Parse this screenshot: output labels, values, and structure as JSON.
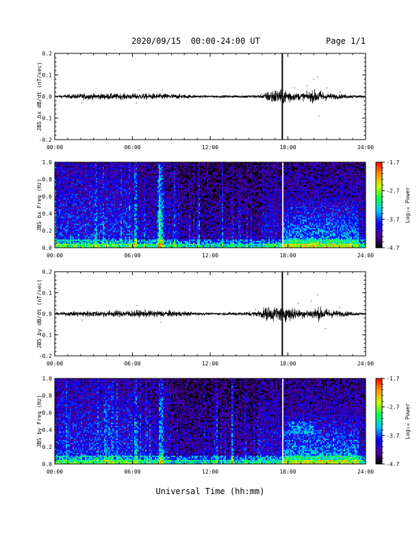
{
  "header": {
    "title": "2020/09/15  00:00-24:00 UT",
    "page": "Page 1/1"
  },
  "xaxis_caption": "Universal Time (hh:mm)",
  "chart_data": [
    {
      "type": "line",
      "ylabel": "JBS bx dB/dt (nT/sec)",
      "xlim": [
        "00:00",
        "24:00"
      ],
      "ylim": [
        -0.2,
        0.2
      ],
      "x_ticks": [
        "00:00",
        "06:00",
        "12:00",
        "18:00",
        "24:00"
      ],
      "y_ticks": [
        "-0.2",
        "-0.1",
        "0.0",
        "0.1",
        "0.2"
      ],
      "series": [
        {
          "x_hours": [
            0,
            2.1,
            6.3,
            6.5,
            8.3,
            12,
            16,
            17.55,
            17.6,
            18.5,
            19.5,
            20,
            20.3,
            20.4,
            21,
            22,
            24
          ],
          "values": [
            0.0,
            -0.03,
            -0.03,
            0.03,
            0.03,
            0.0,
            0.01,
            0.2,
            -0.2,
            0.04,
            0.05,
            0.08,
            0.09,
            -0.09,
            0.04,
            0.02,
            0.0
          ]
        }
      ]
    },
    {
      "type": "heatmap",
      "ylabel": "JBS bx Freq (Hz)",
      "xlim": [
        "00:00",
        "24:00"
      ],
      "ylim": [
        0.0,
        1.0
      ],
      "x_ticks": [
        "00:00",
        "06:00",
        "12:00",
        "18:00",
        "24:00"
      ],
      "y_ticks": [
        "0.0",
        "0.2",
        "0.4",
        "0.6",
        "0.8",
        "1.0"
      ],
      "colorbar": {
        "label": "Log₁₀ Power",
        "range": [
          -4.7,
          -1.7
        ],
        "ticks": [
          "-1.7",
          "-2.7",
          "-3.7",
          "-4.7"
        ]
      },
      "colormap": [
        "#000000",
        "#5000a0",
        "#0000ff",
        "#00c8ff",
        "#00ff50",
        "#c8ff00",
        "#ff9600",
        "#ff0000"
      ],
      "features": {
        "bright_bands_hours": [
          6.2,
          8.2
        ],
        "data_gap_hours": 17.6,
        "enhanced_region_hours": [
          17.6,
          23.5
        ],
        "enhanced_region_freq_hz": [
          0.0,
          0.6
        ]
      }
    },
    {
      "type": "line",
      "ylabel": "JBS by dB/dt (nT/sec)",
      "xlim": [
        "00:00",
        "24:00"
      ],
      "ylim": [
        -0.2,
        0.2
      ],
      "x_ticks": [
        "00:00",
        "06:00",
        "12:00",
        "18:00",
        "24:00"
      ],
      "y_ticks": [
        "-0.2",
        "-0.1",
        "0.0",
        "0.1",
        "0.2"
      ],
      "series": [
        {
          "x_hours": [
            0,
            2.1,
            6.3,
            8.2,
            12,
            15.5,
            17.55,
            17.6,
            18.8,
            19.8,
            20.3,
            20.9,
            22,
            24
          ],
          "values": [
            0.0,
            -0.03,
            0.04,
            -0.04,
            0.0,
            0.02,
            0.2,
            -0.2,
            0.05,
            0.06,
            0.09,
            -0.07,
            0.03,
            0.0
          ]
        }
      ]
    },
    {
      "type": "heatmap",
      "ylabel": "JBS by Freq (Hz)",
      "xlim": [
        "00:00",
        "24:00"
      ],
      "ylim": [
        0.0,
        1.0
      ],
      "x_ticks": [
        "00:00",
        "06:00",
        "12:00",
        "18:00",
        "24:00"
      ],
      "y_ticks": [
        "0.0",
        "0.2",
        "0.4",
        "0.6",
        "0.8",
        "1.0"
      ],
      "colorbar": {
        "label": "Log₁₀ Power",
        "range": [
          -4.7,
          -1.7
        ],
        "ticks": [
          "-1.7",
          "-2.7",
          "-3.7",
          "-4.7"
        ]
      },
      "colormap": [
        "#000000",
        "#5000a0",
        "#0000ff",
        "#00c8ff",
        "#00ff50",
        "#c8ff00",
        "#ff9600",
        "#ff0000"
      ],
      "features": {
        "bright_bands_hours": [
          6.2,
          8.2
        ],
        "data_gap_hours": 17.6,
        "enhanced_region_hours": [
          17.6,
          23.5
        ],
        "enhanced_region_freq_hz": [
          0.0,
          0.6
        ]
      }
    }
  ]
}
